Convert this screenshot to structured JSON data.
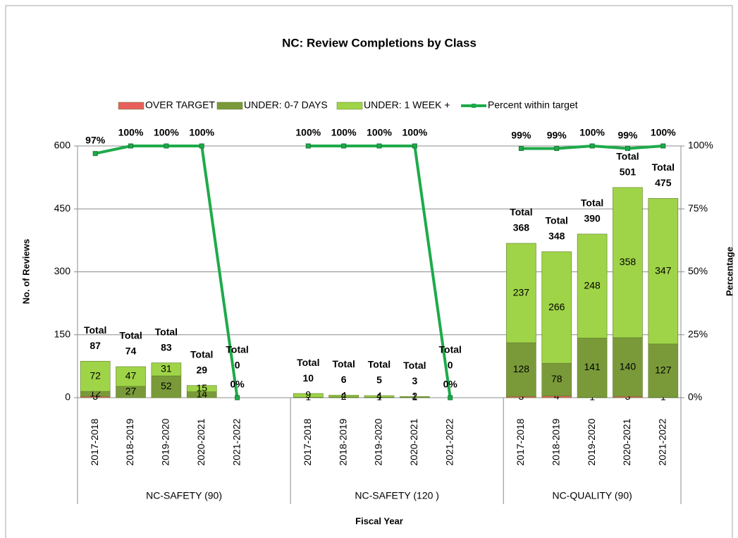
{
  "chart_data": {
    "type": "bar",
    "title": "NC: Review Completions  by Class",
    "x_label": "Fiscal Year",
    "y_label": "No. of Reviews",
    "y2_label": "Percentage",
    "categories": [
      "2017-2018",
      "2018-2019",
      "2019-2020",
      "2020-2021",
      "2021-2022",
      null,
      "2017-2018",
      "2018-2019",
      "2019-2020",
      "2020-2021",
      "2021-2022",
      null,
      "2017-2018",
      "2018-2019",
      "2019-2020",
      "2020-2021",
      "2021-2022"
    ],
    "category_groups": [
      "NC-SAFETY (90)",
      "NC-SAFETY (120 )",
      "NC-QUALITY (90)"
    ],
    "series": [
      {
        "name": "OVER TARGET",
        "color": "#e8605c",
        "values": [
          3,
          0,
          0,
          0,
          0,
          null,
          0,
          0,
          0,
          0,
          0,
          null,
          3,
          4,
          1,
          3,
          1
        ]
      },
      {
        "name": "UNDER: 0-7 DAYS",
        "color": "#7a9a3a",
        "values": [
          12,
          27,
          52,
          14,
          0,
          null,
          1,
          2,
          1,
          1,
          0,
          null,
          128,
          78,
          141,
          140,
          127
        ]
      },
      {
        "name": "UNDER: 1 WEEK +",
        "color": "#9fd448",
        "values": [
          72,
          47,
          31,
          15,
          0,
          null,
          9,
          4,
          4,
          2,
          0,
          null,
          237,
          266,
          248,
          358,
          347
        ]
      },
      {
        "name": "Percent within target",
        "color": "#1eaa4a",
        "type": "line",
        "axis": "y2",
        "values": [
          97,
          100,
          100,
          100,
          0,
          null,
          100,
          100,
          100,
          100,
          0,
          null,
          99,
          99,
          100,
          99,
          100
        ],
        "value_labels": [
          "97%",
          "100%",
          "100%",
          "100%",
          "0%",
          null,
          "100%",
          "100%",
          "100%",
          "100%",
          "0%",
          null,
          "99%",
          "99%",
          "100%",
          "99%",
          "100%"
        ]
      }
    ],
    "totals": {
      "label": "Total",
      "values": [
        87,
        74,
        83,
        29,
        0,
        null,
        10,
        6,
        5,
        3,
        0,
        null,
        368,
        348,
        390,
        501,
        475
      ]
    },
    "ylim": [
      0,
      600
    ],
    "yticks": [
      0,
      150,
      300,
      450,
      600
    ],
    "y2lim": [
      0,
      100
    ],
    "y2ticks": [
      {
        "value": 0,
        "label": "0%"
      },
      {
        "value": 25,
        "label": "25%"
      },
      {
        "value": 50,
        "label": "50%"
      },
      {
        "value": 75,
        "label": "75%"
      },
      {
        "value": 100,
        "label": "100%"
      }
    ],
    "grid": true,
    "legend": "top"
  }
}
